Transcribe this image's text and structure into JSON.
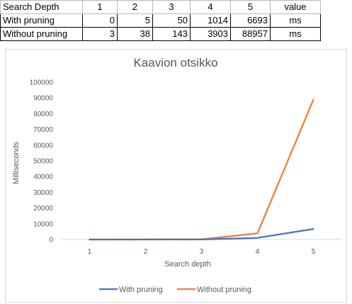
{
  "table": {
    "header": [
      "Search Depth",
      "1",
      "2",
      "3",
      "4",
      "5",
      "value"
    ],
    "rows": [
      [
        "With pruning",
        "0",
        "5",
        "50",
        "1014",
        "6693",
        "ms"
      ],
      [
        "Without pruning",
        "3",
        "38",
        "143",
        "3903",
        "88957",
        "ms"
      ]
    ]
  },
  "chart_data": {
    "type": "line",
    "title": "Kaavion otsikko",
    "xlabel": "Search depth",
    "ylabel": "Milliseconds",
    "categories": [
      "1",
      "2",
      "3",
      "4",
      "5"
    ],
    "ylim": [
      0,
      100000
    ],
    "yticks": [
      "0",
      "10000",
      "20000",
      "30000",
      "40000",
      "50000",
      "60000",
      "70000",
      "80000",
      "90000",
      "100000"
    ],
    "grid": false,
    "legend": "bottom",
    "series": [
      {
        "name": "With pruning",
        "color": "#4472c4",
        "values": [
          0,
          5,
          50,
          1014,
          6693
        ]
      },
      {
        "name": "Without pruning",
        "color": "#ed7d31",
        "values": [
          3,
          38,
          143,
          3903,
          88957
        ]
      }
    ]
  }
}
